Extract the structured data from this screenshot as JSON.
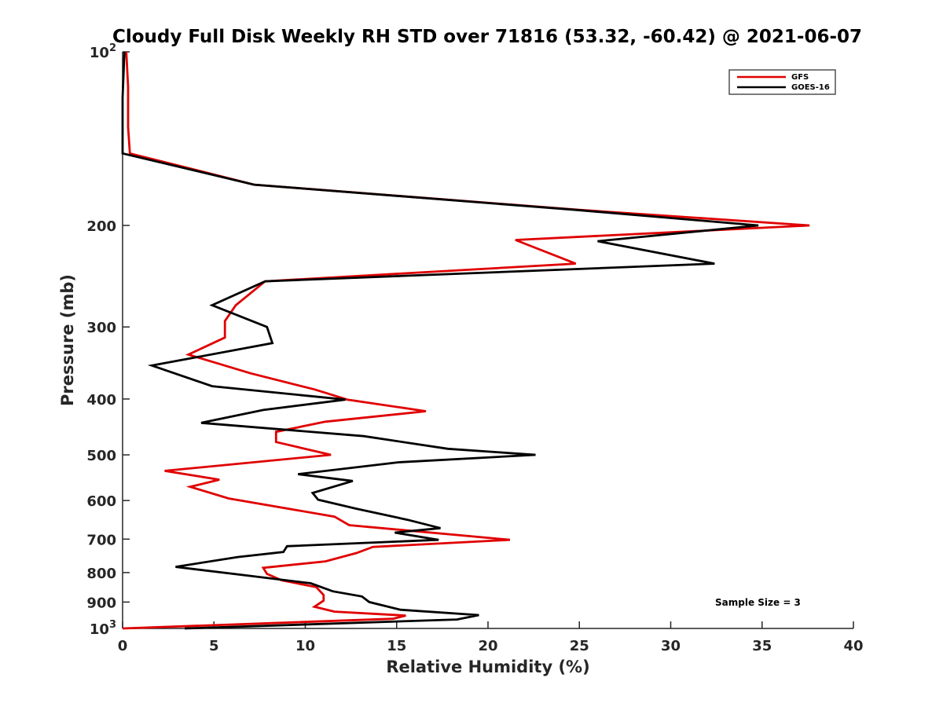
{
  "chart_data": {
    "type": "line",
    "title": "Cloudy Full Disk Weekly RH STD over 71816 (53.32, -60.42) @ 2021-06-07",
    "xlabel": "Relative Humidity (%)",
    "ylabel": "Pressure (mb)",
    "xlim": [
      0,
      40
    ],
    "ylim": [
      100,
      1000
    ],
    "y_scale": "log",
    "y_reversed": true,
    "x_ticks": [
      "0",
      "5",
      "10",
      "15",
      "20",
      "25",
      "30",
      "35",
      "40"
    ],
    "y_ticks": [
      {
        "value": 100,
        "base": "10",
        "exp": "2"
      },
      {
        "value": 200,
        "label": "200"
      },
      {
        "value": 300,
        "label": "300"
      },
      {
        "value": 400,
        "label": "400"
      },
      {
        "value": 500,
        "label": "500"
      },
      {
        "value": 600,
        "label": "600"
      },
      {
        "value": 700,
        "label": "700"
      },
      {
        "value": 800,
        "label": "800"
      },
      {
        "value": 900,
        "label": "900"
      },
      {
        "value": 1000,
        "base": "10",
        "exp": "3"
      }
    ],
    "grid": false,
    "legend_position": "top-right",
    "annotation": "Sample Size = 3",
    "series": [
      {
        "name": "GFS",
        "color": "#e00000",
        "points": [
          [
            0.2,
            100
          ],
          [
            0.3,
            115
          ],
          [
            0.3,
            135
          ],
          [
            0.4,
            150
          ],
          [
            7.2,
            170
          ],
          [
            25.0,
            188
          ],
          [
            37.6,
            200
          ],
          [
            21.5,
            212
          ],
          [
            24.8,
            233
          ],
          [
            7.8,
            250
          ],
          [
            6.2,
            275
          ],
          [
            5.6,
            293
          ],
          [
            5.6,
            313
          ],
          [
            3.6,
            335
          ],
          [
            7.0,
            361
          ],
          [
            10.5,
            385
          ],
          [
            12.3,
            401
          ],
          [
            16.6,
            420
          ],
          [
            11.1,
            438
          ],
          [
            8.4,
            456
          ],
          [
            8.4,
            475
          ],
          [
            11.4,
            500
          ],
          [
            2.3,
            533
          ],
          [
            5.3,
            552
          ],
          [
            3.7,
            568
          ],
          [
            5.8,
            595
          ],
          [
            11.6,
            640
          ],
          [
            12.4,
            662
          ],
          [
            21.2,
            702
          ],
          [
            13.7,
            722
          ],
          [
            12.8,
            740
          ],
          [
            11.1,
            765
          ],
          [
            7.7,
            785
          ],
          [
            7.9,
            804
          ],
          [
            8.7,
            825
          ],
          [
            10.6,
            848
          ],
          [
            11.0,
            875
          ],
          [
            11.0,
            895
          ],
          [
            10.5,
            917
          ],
          [
            11.6,
            935
          ],
          [
            15.5,
            950
          ],
          [
            14.8,
            962
          ],
          [
            0.0,
            1000
          ]
        ]
      },
      {
        "name": "GOES-16",
        "color": "#000000",
        "points": [
          [
            0.1,
            100
          ],
          [
            0.0,
            120
          ],
          [
            0.0,
            150
          ],
          [
            7.2,
            170
          ],
          [
            24.8,
            188
          ],
          [
            34.8,
            200
          ],
          [
            26.0,
            213
          ],
          [
            32.4,
            233
          ],
          [
            7.8,
            250
          ],
          [
            4.9,
            275
          ],
          [
            7.9,
            300
          ],
          [
            8.2,
            320
          ],
          [
            1.6,
            350
          ],
          [
            4.9,
            380
          ],
          [
            12.2,
            401
          ],
          [
            7.7,
            418
          ],
          [
            4.3,
            440
          ],
          [
            13.2,
            464
          ],
          [
            17.8,
            488
          ],
          [
            22.6,
            500
          ],
          [
            15.1,
            515
          ],
          [
            9.6,
            540
          ],
          [
            12.6,
            555
          ],
          [
            10.4,
            582
          ],
          [
            10.7,
            598
          ],
          [
            12.8,
            620
          ],
          [
            15.6,
            648
          ],
          [
            17.4,
            670
          ],
          [
            14.9,
            682
          ],
          [
            17.3,
            702
          ],
          [
            9.0,
            720
          ],
          [
            8.8,
            737
          ],
          [
            6.3,
            752
          ],
          [
            2.9,
            782
          ],
          [
            6.6,
            808
          ],
          [
            10.3,
            835
          ],
          [
            11.5,
            862
          ],
          [
            13.1,
            880
          ],
          [
            13.5,
            900
          ],
          [
            15.2,
            928
          ],
          [
            19.5,
            948
          ],
          [
            18.3,
            965
          ],
          [
            3.4,
            1000
          ]
        ]
      }
    ]
  }
}
